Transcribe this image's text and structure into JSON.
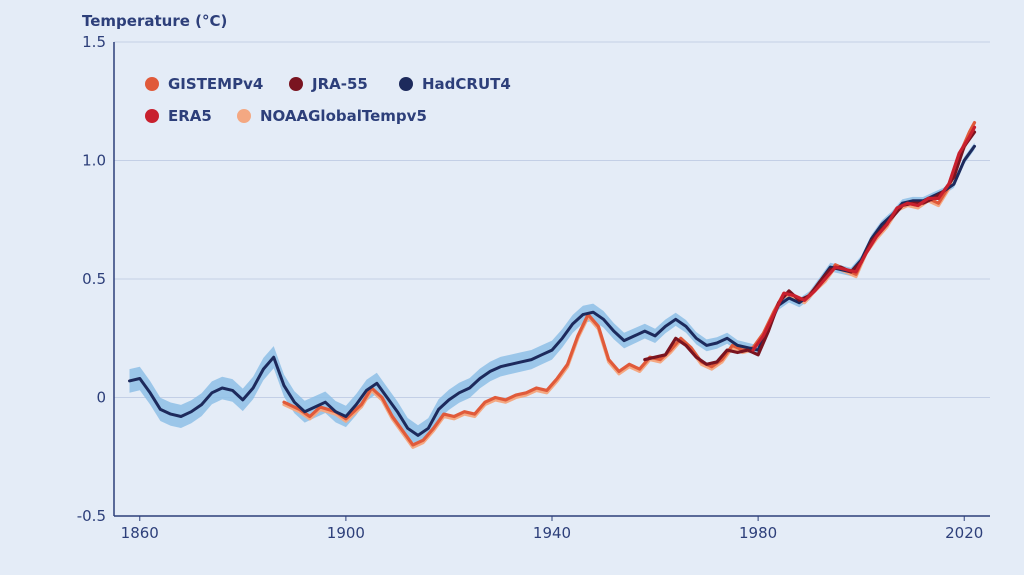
{
  "chart_data": {
    "type": "line",
    "ylabel": "Temperature (°C)",
    "xlim": [
      1855,
      2025
    ],
    "ylim": [
      -0.5,
      1.5
    ],
    "x_ticks": [
      1860,
      1900,
      1940,
      1980,
      2020
    ],
    "y_ticks": [
      -0.5,
      0,
      0.5,
      1.0,
      1.5
    ],
    "y_tick_labels": [
      "-0.5",
      "0",
      "0.5",
      "1.0",
      "1.5"
    ],
    "grid": true,
    "legend_position": "top-left",
    "uncertainty_band": {
      "series": "HadCRUT4",
      "color": "#8ec0e6",
      "half_width": [
        [
          1858,
          0.05
        ],
        [
          1900,
          0.045
        ],
        [
          1940,
          0.04
        ],
        [
          1980,
          0.02
        ],
        [
          2022,
          0.015
        ]
      ]
    },
    "series": [
      {
        "name": "GISTEMPv4",
        "color": "#e05a3a",
        "points": [
          [
            1888,
            -0.02
          ],
          [
            1891,
            -0.05
          ],
          [
            1893,
            -0.08
          ],
          [
            1895,
            -0.04
          ],
          [
            1898,
            -0.06
          ],
          [
            1900,
            -0.09
          ],
          [
            1903,
            -0.03
          ],
          [
            1905,
            0.04
          ],
          [
            1907,
            0.0
          ],
          [
            1909,
            -0.08
          ],
          [
            1911,
            -0.14
          ],
          [
            1913,
            -0.2
          ],
          [
            1915,
            -0.18
          ],
          [
            1917,
            -0.13
          ],
          [
            1919,
            -0.07
          ],
          [
            1921,
            -0.08
          ],
          [
            1923,
            -0.06
          ],
          [
            1925,
            -0.07
          ],
          [
            1927,
            -0.02
          ],
          [
            1929,
            0.0
          ],
          [
            1931,
            -0.01
          ],
          [
            1933,
            0.01
          ],
          [
            1935,
            0.02
          ],
          [
            1937,
            0.04
          ],
          [
            1939,
            0.03
          ],
          [
            1941,
            0.08
          ],
          [
            1943,
            0.14
          ],
          [
            1945,
            0.26
          ],
          [
            1947,
            0.35
          ],
          [
            1949,
            0.3
          ],
          [
            1951,
            0.16
          ],
          [
            1953,
            0.11
          ],
          [
            1955,
            0.14
          ],
          [
            1957,
            0.12
          ],
          [
            1959,
            0.17
          ],
          [
            1961,
            0.16
          ],
          [
            1963,
            0.2
          ],
          [
            1965,
            0.25
          ],
          [
            1967,
            0.21
          ],
          [
            1969,
            0.15
          ],
          [
            1971,
            0.13
          ],
          [
            1973,
            0.16
          ],
          [
            1975,
            0.22
          ],
          [
            1977,
            0.2
          ],
          [
            1979,
            0.21
          ],
          [
            1981,
            0.27
          ],
          [
            1983,
            0.36
          ],
          [
            1985,
            0.44
          ],
          [
            1987,
            0.43
          ],
          [
            1989,
            0.41
          ],
          [
            1991,
            0.46
          ],
          [
            1993,
            0.5
          ],
          [
            1995,
            0.56
          ],
          [
            1997,
            0.54
          ],
          [
            1999,
            0.52
          ],
          [
            2001,
            0.62
          ],
          [
            2003,
            0.68
          ],
          [
            2005,
            0.73
          ],
          [
            2007,
            0.8
          ],
          [
            2009,
            0.82
          ],
          [
            2011,
            0.81
          ],
          [
            2013,
            0.84
          ],
          [
            2015,
            0.82
          ],
          [
            2017,
            0.89
          ],
          [
            2019,
            1.02
          ],
          [
            2021,
            1.12
          ],
          [
            2022,
            1.16
          ]
        ]
      },
      {
        "name": "JRA-55",
        "color": "#7a1420",
        "points": [
          [
            1958,
            0.16
          ],
          [
            1960,
            0.17
          ],
          [
            1962,
            0.18
          ],
          [
            1964,
            0.25
          ],
          [
            1966,
            0.22
          ],
          [
            1968,
            0.17
          ],
          [
            1970,
            0.14
          ],
          [
            1972,
            0.15
          ],
          [
            1974,
            0.2
          ],
          [
            1976,
            0.19
          ],
          [
            1978,
            0.2
          ],
          [
            1980,
            0.18
          ],
          [
            1982,
            0.28
          ],
          [
            1984,
            0.4
          ],
          [
            1986,
            0.45
          ],
          [
            1988,
            0.41
          ],
          [
            1990,
            0.43
          ],
          [
            1992,
            0.49
          ],
          [
            1994,
            0.54
          ],
          [
            1996,
            0.55
          ],
          [
            1998,
            0.53
          ],
          [
            2000,
            0.57
          ],
          [
            2002,
            0.66
          ],
          [
            2004,
            0.71
          ],
          [
            2006,
            0.76
          ],
          [
            2008,
            0.81
          ],
          [
            2010,
            0.82
          ],
          [
            2012,
            0.82
          ],
          [
            2014,
            0.84
          ],
          [
            2016,
            0.87
          ],
          [
            2018,
            0.93
          ],
          [
            2020,
            1.06
          ],
          [
            2022,
            1.12
          ]
        ]
      },
      {
        "name": "HadCRUT4",
        "color": "#1d2a5c",
        "points": [
          [
            1858,
            0.07
          ],
          [
            1860,
            0.08
          ],
          [
            1862,
            0.02
          ],
          [
            1864,
            -0.05
          ],
          [
            1866,
            -0.07
          ],
          [
            1868,
            -0.08
          ],
          [
            1870,
            -0.06
          ],
          [
            1872,
            -0.03
          ],
          [
            1874,
            0.02
          ],
          [
            1876,
            0.04
          ],
          [
            1878,
            0.03
          ],
          [
            1880,
            -0.01
          ],
          [
            1882,
            0.04
          ],
          [
            1884,
            0.12
          ],
          [
            1886,
            0.17
          ],
          [
            1888,
            0.05
          ],
          [
            1890,
            -0.02
          ],
          [
            1892,
            -0.06
          ],
          [
            1894,
            -0.04
          ],
          [
            1896,
            -0.02
          ],
          [
            1898,
            -0.06
          ],
          [
            1900,
            -0.08
          ],
          [
            1902,
            -0.03
          ],
          [
            1904,
            0.03
          ],
          [
            1906,
            0.06
          ],
          [
            1908,
            0.0
          ],
          [
            1910,
            -0.06
          ],
          [
            1912,
            -0.13
          ],
          [
            1914,
            -0.16
          ],
          [
            1916,
            -0.13
          ],
          [
            1918,
            -0.05
          ],
          [
            1920,
            -0.01
          ],
          [
            1922,
            0.02
          ],
          [
            1924,
            0.04
          ],
          [
            1926,
            0.08
          ],
          [
            1928,
            0.11
          ],
          [
            1930,
            0.13
          ],
          [
            1932,
            0.14
          ],
          [
            1934,
            0.15
          ],
          [
            1936,
            0.16
          ],
          [
            1938,
            0.18
          ],
          [
            1940,
            0.2
          ],
          [
            1942,
            0.25
          ],
          [
            1944,
            0.31
          ],
          [
            1946,
            0.35
          ],
          [
            1948,
            0.36
          ],
          [
            1950,
            0.33
          ],
          [
            1952,
            0.28
          ],
          [
            1954,
            0.24
          ],
          [
            1956,
            0.26
          ],
          [
            1958,
            0.28
          ],
          [
            1960,
            0.26
          ],
          [
            1962,
            0.3
          ],
          [
            1964,
            0.33
          ],
          [
            1966,
            0.3
          ],
          [
            1968,
            0.25
          ],
          [
            1970,
            0.22
          ],
          [
            1972,
            0.23
          ],
          [
            1974,
            0.25
          ],
          [
            1976,
            0.22
          ],
          [
            1978,
            0.21
          ],
          [
            1980,
            0.2
          ],
          [
            1982,
            0.3
          ],
          [
            1984,
            0.39
          ],
          [
            1986,
            0.42
          ],
          [
            1988,
            0.4
          ],
          [
            1990,
            0.43
          ],
          [
            1992,
            0.49
          ],
          [
            1994,
            0.55
          ],
          [
            1996,
            0.54
          ],
          [
            1998,
            0.53
          ],
          [
            2000,
            0.58
          ],
          [
            2002,
            0.67
          ],
          [
            2004,
            0.73
          ],
          [
            2006,
            0.77
          ],
          [
            2008,
            0.82
          ],
          [
            2010,
            0.83
          ],
          [
            2012,
            0.83
          ],
          [
            2014,
            0.85
          ],
          [
            2016,
            0.87
          ],
          [
            2018,
            0.9
          ],
          [
            2020,
            1.0
          ],
          [
            2022,
            1.06
          ]
        ]
      },
      {
        "name": "ERA5",
        "color": "#c8202e",
        "points": [
          [
            1979,
            0.2
          ],
          [
            1981,
            0.26
          ],
          [
            1983,
            0.35
          ],
          [
            1985,
            0.44
          ],
          [
            1987,
            0.43
          ],
          [
            1989,
            0.41
          ],
          [
            1991,
            0.45
          ],
          [
            1993,
            0.5
          ],
          [
            1995,
            0.55
          ],
          [
            1997,
            0.54
          ],
          [
            1999,
            0.53
          ],
          [
            2001,
            0.61
          ],
          [
            2003,
            0.68
          ],
          [
            2005,
            0.73
          ],
          [
            2007,
            0.8
          ],
          [
            2009,
            0.82
          ],
          [
            2011,
            0.81
          ],
          [
            2013,
            0.84
          ],
          [
            2015,
            0.84
          ],
          [
            2017,
            0.9
          ],
          [
            2019,
            1.03
          ],
          [
            2021,
            1.1
          ],
          [
            2022,
            1.14
          ]
        ]
      },
      {
        "name": "NOAAGlobalTempv5",
        "color": "#f4a882",
        "points": [
          [
            1888,
            -0.03
          ],
          [
            1891,
            -0.06
          ],
          [
            1893,
            -0.09
          ],
          [
            1895,
            -0.05
          ],
          [
            1898,
            -0.07
          ],
          [
            1900,
            -0.1
          ],
          [
            1903,
            -0.04
          ],
          [
            1905,
            0.03
          ],
          [
            1907,
            -0.01
          ],
          [
            1909,
            -0.09
          ],
          [
            1911,
            -0.15
          ],
          [
            1913,
            -0.21
          ],
          [
            1915,
            -0.19
          ],
          [
            1917,
            -0.14
          ],
          [
            1919,
            -0.08
          ],
          [
            1921,
            -0.09
          ],
          [
            1923,
            -0.07
          ],
          [
            1925,
            -0.08
          ],
          [
            1927,
            -0.03
          ],
          [
            1929,
            -0.01
          ],
          [
            1931,
            -0.02
          ],
          [
            1933,
            0.0
          ],
          [
            1935,
            0.01
          ],
          [
            1937,
            0.03
          ],
          [
            1939,
            0.02
          ],
          [
            1941,
            0.07
          ],
          [
            1943,
            0.13
          ],
          [
            1945,
            0.25
          ],
          [
            1947,
            0.34
          ],
          [
            1949,
            0.29
          ],
          [
            1951,
            0.15
          ],
          [
            1953,
            0.1
          ],
          [
            1955,
            0.13
          ],
          [
            1957,
            0.11
          ],
          [
            1959,
            0.16
          ],
          [
            1961,
            0.15
          ],
          [
            1963,
            0.19
          ],
          [
            1965,
            0.24
          ],
          [
            1967,
            0.2
          ],
          [
            1969,
            0.14
          ],
          [
            1971,
            0.12
          ],
          [
            1973,
            0.15
          ],
          [
            1975,
            0.21
          ],
          [
            1977,
            0.19
          ],
          [
            1979,
            0.2
          ],
          [
            1981,
            0.26
          ],
          [
            1983,
            0.35
          ],
          [
            1985,
            0.43
          ],
          [
            1987,
            0.42
          ],
          [
            1989,
            0.4
          ],
          [
            1991,
            0.45
          ],
          [
            1993,
            0.49
          ],
          [
            1995,
            0.55
          ],
          [
            1997,
            0.53
          ],
          [
            1999,
            0.51
          ],
          [
            2001,
            0.61
          ],
          [
            2003,
            0.67
          ],
          [
            2005,
            0.72
          ],
          [
            2007,
            0.79
          ],
          [
            2009,
            0.81
          ],
          [
            2011,
            0.8
          ],
          [
            2013,
            0.83
          ],
          [
            2015,
            0.81
          ],
          [
            2017,
            0.88
          ],
          [
            2019,
            1.01
          ],
          [
            2021,
            1.1
          ],
          [
            2022,
            1.14
          ]
        ]
      }
    ]
  }
}
